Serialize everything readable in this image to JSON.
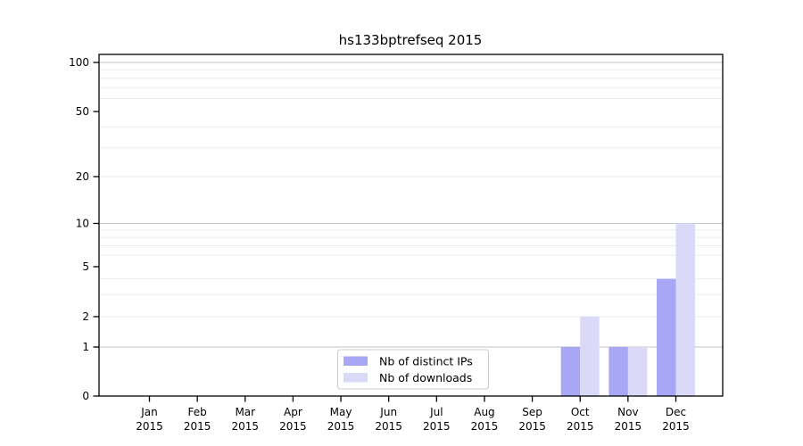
{
  "chart_data": {
    "type": "bar",
    "title": "hs133bptrefseq 2015",
    "categories": [
      "Jan 2015",
      "Feb 2015",
      "Mar 2015",
      "Apr 2015",
      "May 2015",
      "Jun 2015",
      "Jul 2015",
      "Aug 2015",
      "Sep 2015",
      "Oct 2015",
      "Nov 2015",
      "Dec 2015"
    ],
    "series": [
      {
        "name": "Nb of distinct IPs",
        "color": "#a7a7f5",
        "values": [
          0,
          0,
          0,
          0,
          0,
          0,
          0,
          0,
          0,
          1,
          1,
          4
        ]
      },
      {
        "name": "Nb of downloads",
        "color": "#dadaf8",
        "values": [
          0,
          0,
          0,
          0,
          0,
          0,
          0,
          0,
          0,
          2,
          1,
          10
        ]
      }
    ],
    "xlabel": "",
    "ylabel": "",
    "yticks": [
      0,
      1,
      2,
      5,
      10,
      20,
      50,
      100
    ],
    "minor_gridlines": [
      2,
      3,
      4,
      6,
      7,
      8,
      9,
      20,
      30,
      40,
      60,
      70,
      80,
      90
    ],
    "major_gridlines": [
      1,
      10,
      100
    ],
    "yscale": "log-above-1-with-zero-baseline",
    "ylim": [
      0,
      100
    ],
    "grid": true,
    "legend_position": "bottom-center",
    "colors": {
      "background": "#ffffff",
      "axis": "#000000",
      "major_grid": "#c3c3c3",
      "minor_grid": "#ebebeb",
      "legend_border": "#cccccc",
      "legend_background": "#ffffff",
      "text": "#000000"
    }
  }
}
